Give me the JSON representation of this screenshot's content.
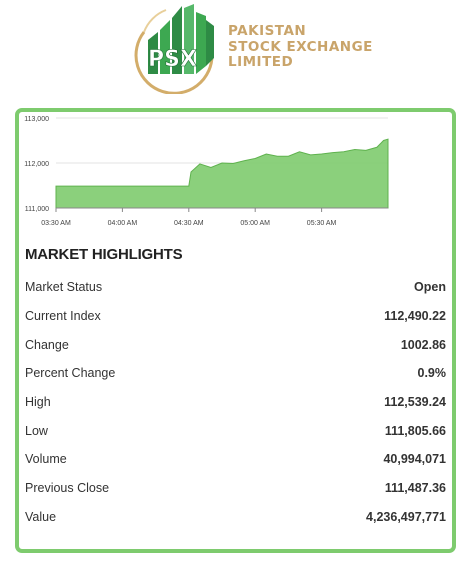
{
  "brand": {
    "logo_text": "PSX",
    "name_lines": [
      "PAKISTAN",
      "STOCK EXCHANGE",
      "LIMITED"
    ]
  },
  "chart_data": {
    "type": "area",
    "color": "#7ecb6e",
    "y_ticks": [
      "113,000",
      "112,000",
      "111,000"
    ],
    "x_ticks": [
      "03:30 AM",
      "04:00 AM",
      "04:30 AM",
      "05:00 AM",
      "05:30 AM"
    ],
    "ylim": [
      111000,
      113000
    ],
    "series": [
      {
        "x": [
          "03:30",
          "03:35",
          "03:40",
          "03:45",
          "03:50",
          "03:55",
          "04:00",
          "04:05",
          "04:10",
          "04:15",
          "04:20",
          "04:25",
          "04:30",
          "04:31",
          "04:35",
          "04:40",
          "04:45",
          "04:50",
          "04:55",
          "05:00",
          "05:05",
          "05:10",
          "05:15",
          "05:20",
          "05:25",
          "05:30",
          "05:35",
          "05:40",
          "05:45",
          "05:50",
          "05:55",
          "05:58",
          "06:00"
        ],
        "values": [
          111487,
          111487,
          111487,
          111487,
          111487,
          111487,
          111487,
          111487,
          111487,
          111487,
          111487,
          111487,
          111487,
          111800,
          111980,
          111900,
          112000,
          111990,
          112050,
          112100,
          112200,
          112150,
          112150,
          112250,
          112180,
          112200,
          112230,
          112250,
          112300,
          112280,
          112350,
          112500,
          112530
        ]
      }
    ]
  },
  "highlights": {
    "title": "MARKET HIGHLIGHTS",
    "rows": [
      {
        "label": "Market Status",
        "value": "Open"
      },
      {
        "label": "Current Index",
        "value": "112,490.22"
      },
      {
        "label": "Change",
        "value": "1002.86"
      },
      {
        "label": "Percent Change",
        "value": "0.9%"
      },
      {
        "label": "High",
        "value": "112,539.24"
      },
      {
        "label": "Low",
        "value": "111,805.66"
      },
      {
        "label": "Volume",
        "value": "40,994,071"
      },
      {
        "label": "Previous Close",
        "value": "111,487.36"
      },
      {
        "label": "Value",
        "value": "4,236,497,771"
      }
    ]
  }
}
